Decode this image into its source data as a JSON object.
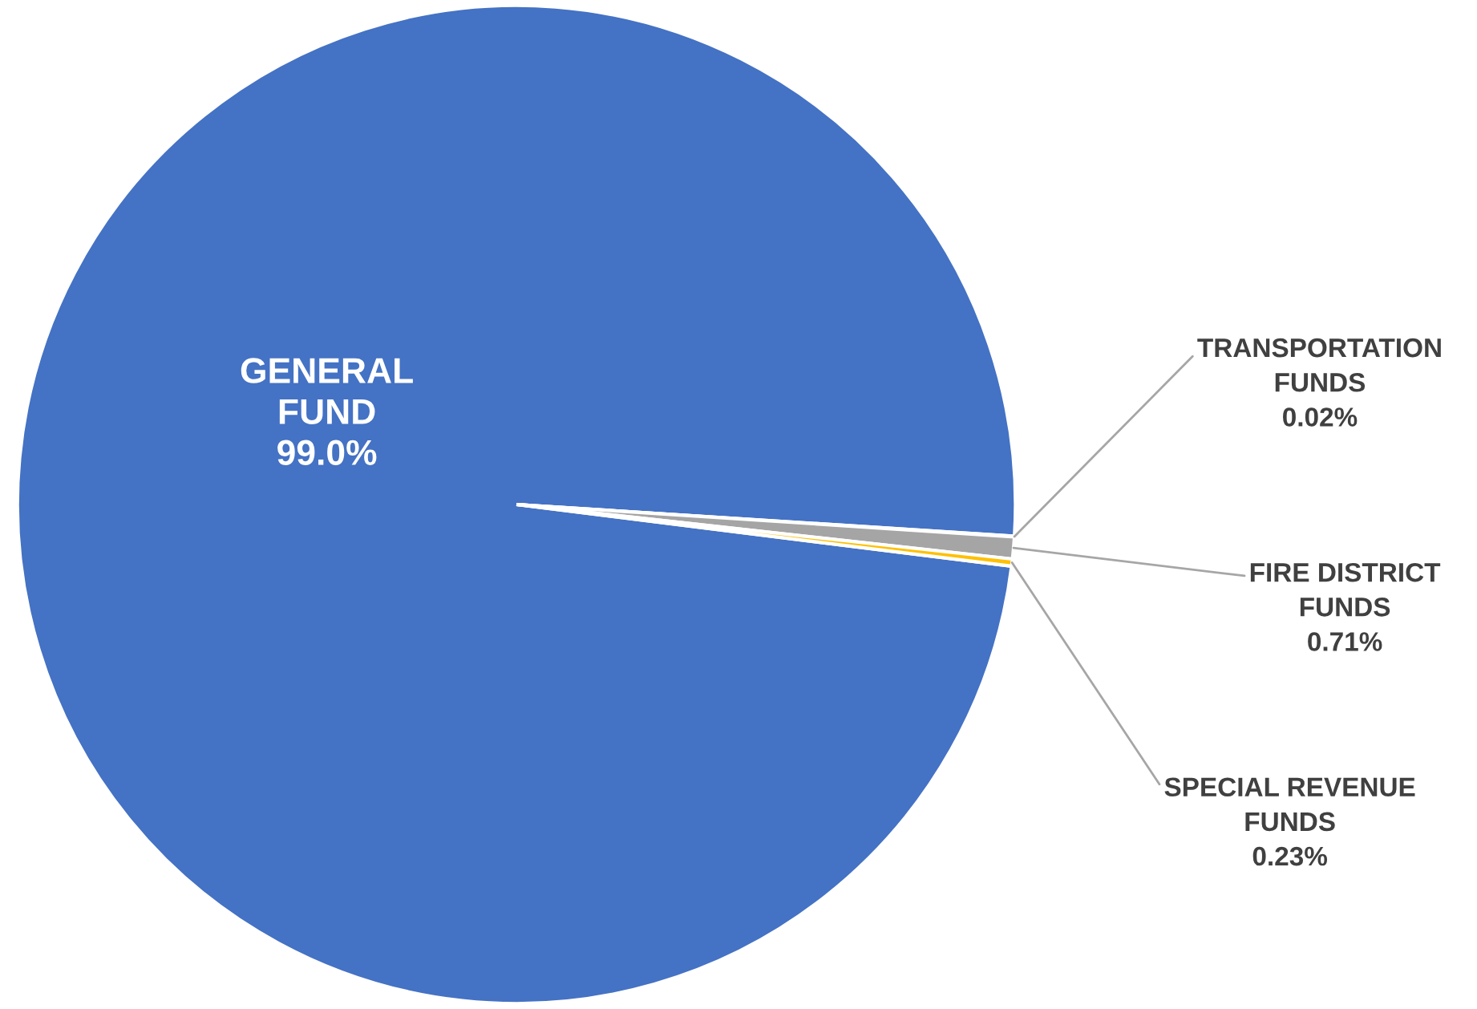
{
  "chart_data": {
    "type": "pie",
    "categories": [
      "GENERAL\nFUND",
      "TRANSPORTATION\nFUNDS",
      "FIRE DISTRICT\nFUNDS",
      "SPECIAL REVENUE\nFUNDS"
    ],
    "values": [
      99.0,
      0.02,
      0.71,
      0.23
    ],
    "value_labels": [
      "99.0%",
      "0.02%",
      "0.71%",
      "0.23%"
    ],
    "colors": [
      "#4472c4",
      "#ed7d31",
      "#a5a5a5",
      "#ffc000"
    ],
    "legend": false
  }
}
